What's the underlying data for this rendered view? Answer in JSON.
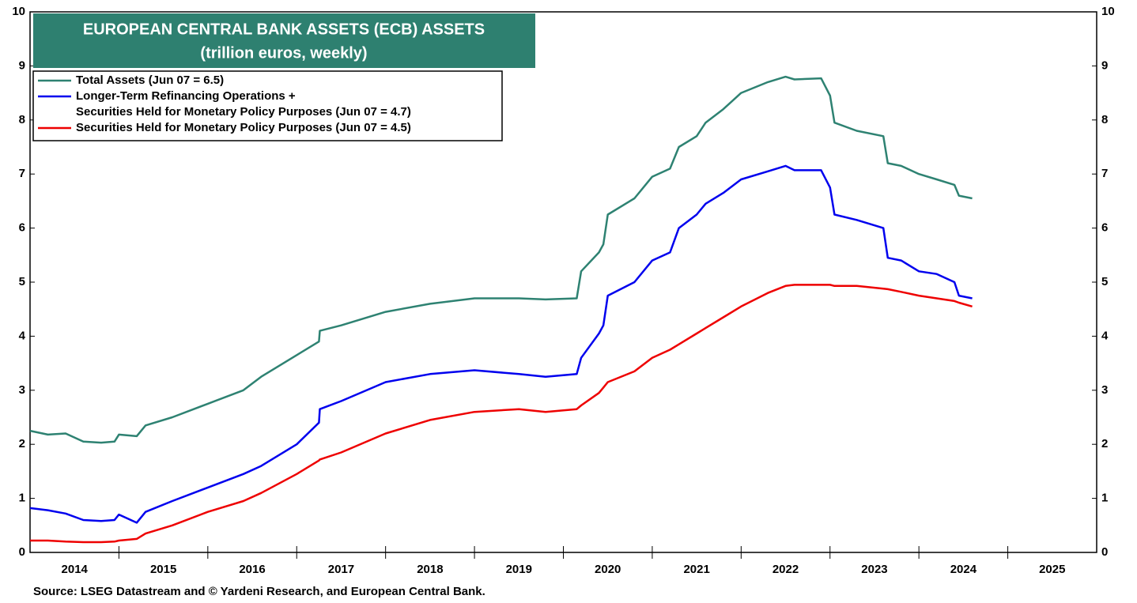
{
  "chart_data": {
    "type": "line",
    "title": "EUROPEAN CENTRAL BANK ASSETS (ECB) ASSETS",
    "subtitle": "(trillion euros, weekly)",
    "source": "Source: LSEG Datastream and © Yardeni Research, and European Central Bank.",
    "x": [
      2014.0,
      2014.2,
      2014.4,
      2014.6,
      2014.8,
      2014.95,
      2015.0,
      2015.2,
      2015.3,
      2015.6,
      2016.0,
      2016.4,
      2016.6,
      2017.0,
      2017.25,
      2017.26,
      2017.5,
      2018.0,
      2018.5,
      2019.0,
      2019.5,
      2019.8,
      2020.15,
      2020.2,
      2020.4,
      2020.45,
      2020.5,
      2020.8,
      2021.0,
      2021.2,
      2021.3,
      2021.5,
      2021.6,
      2021.8,
      2022.0,
      2022.3,
      2022.5,
      2022.6,
      2022.9,
      2023.0,
      2023.05,
      2023.3,
      2023.6,
      2023.65,
      2023.8,
      2024.0,
      2024.2,
      2024.4,
      2024.45,
      2024.6
    ],
    "series": [
      {
        "name": "Total Assets (Jun 07 = 6.5)",
        "color": "#2e8272",
        "values": [
          2.25,
          2.18,
          2.2,
          2.05,
          2.03,
          2.05,
          2.18,
          2.15,
          2.35,
          2.5,
          2.75,
          3.0,
          3.25,
          3.65,
          3.9,
          4.1,
          4.2,
          4.45,
          4.6,
          4.7,
          4.7,
          4.68,
          4.7,
          5.2,
          5.55,
          5.7,
          6.25,
          6.55,
          6.95,
          7.1,
          7.5,
          7.7,
          7.95,
          8.2,
          8.5,
          8.7,
          8.8,
          8.75,
          8.77,
          8.45,
          7.95,
          7.8,
          7.7,
          7.2,
          7.15,
          7.0,
          6.9,
          6.8,
          6.6,
          6.55
        ]
      },
      {
        "name": "Longer-Term Refinancing Operations +\nSecurities Held for Monetary Policy Purposes (Jun 07 = 4.7)",
        "color": "#0000ee",
        "values": [
          0.82,
          0.78,
          0.72,
          0.6,
          0.58,
          0.6,
          0.7,
          0.55,
          0.75,
          0.95,
          1.2,
          1.45,
          1.6,
          2.0,
          2.4,
          2.65,
          2.8,
          3.15,
          3.3,
          3.37,
          3.3,
          3.25,
          3.3,
          3.6,
          4.05,
          4.2,
          4.75,
          5.0,
          5.4,
          5.55,
          6.0,
          6.25,
          6.45,
          6.65,
          6.9,
          7.05,
          7.15,
          7.07,
          7.07,
          6.75,
          6.25,
          6.15,
          6.0,
          5.45,
          5.4,
          5.2,
          5.15,
          5.0,
          4.75,
          4.7
        ]
      },
      {
        "name": "Securities Held for Monetary Policy Purposes (Jun 07 = 4.5)",
        "color": "#ee0000",
        "values": [
          0.22,
          0.22,
          0.2,
          0.19,
          0.19,
          0.2,
          0.22,
          0.25,
          0.35,
          0.5,
          0.75,
          0.95,
          1.1,
          1.45,
          1.7,
          1.72,
          1.85,
          2.2,
          2.45,
          2.6,
          2.65,
          2.6,
          2.65,
          2.72,
          2.95,
          3.05,
          3.15,
          3.35,
          3.6,
          3.75,
          3.85,
          4.05,
          4.15,
          4.35,
          4.55,
          4.8,
          4.93,
          4.95,
          4.95,
          4.95,
          4.93,
          4.93,
          4.88,
          4.87,
          4.82,
          4.75,
          4.7,
          4.65,
          4.62,
          4.55
        ]
      }
    ],
    "xlim": [
      2014,
      2026
    ],
    "xticks": [
      {
        "value": 2014.5,
        "label": "2014"
      },
      {
        "value": 2015.5,
        "label": "2015"
      },
      {
        "value": 2016.5,
        "label": "2016"
      },
      {
        "value": 2017.5,
        "label": "2017"
      },
      {
        "value": 2018.5,
        "label": "2018"
      },
      {
        "value": 2019.5,
        "label": "2019"
      },
      {
        "value": 2020.5,
        "label": "2020"
      },
      {
        "value": 2021.5,
        "label": "2021"
      },
      {
        "value": 2022.5,
        "label": "2022"
      },
      {
        "value": 2023.5,
        "label": "2023"
      },
      {
        "value": 2024.5,
        "label": "2024"
      },
      {
        "value": 2025.5,
        "label": "2025"
      }
    ],
    "xminor": [
      2015,
      2016,
      2017,
      2018,
      2019,
      2020,
      2021,
      2022,
      2023,
      2024,
      2025
    ],
    "ylim": [
      0,
      10
    ],
    "yticks": [
      0,
      1,
      2,
      3,
      4,
      5,
      6,
      7,
      8,
      9,
      10
    ],
    "y2lim": [
      0,
      10
    ],
    "y2ticks": [
      0,
      1,
      2,
      3,
      4,
      5,
      6,
      7,
      8,
      9,
      10
    ],
    "legend": "upper left"
  }
}
